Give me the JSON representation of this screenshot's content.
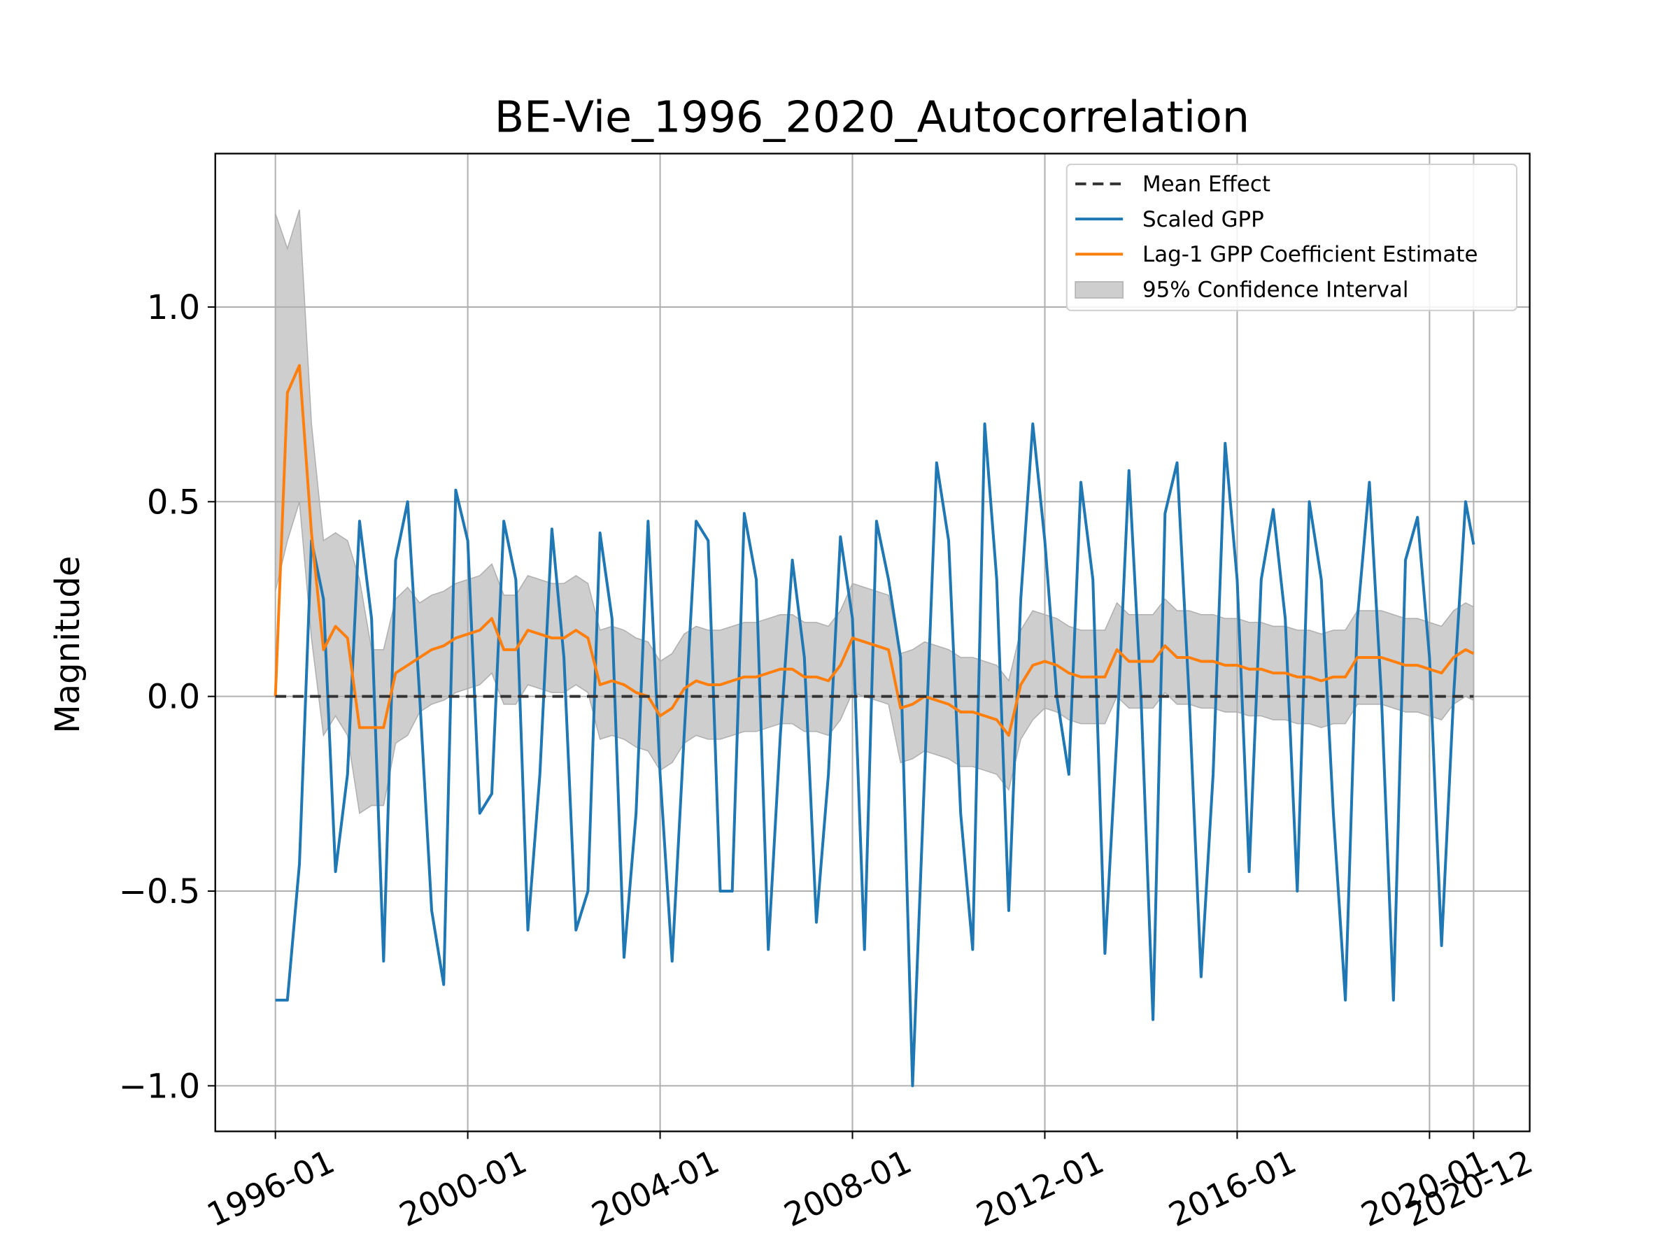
{
  "chart_data": {
    "type": "line",
    "title": "BE-Vie_1996_2020_Autocorrelation",
    "ylabel": "Magnitude",
    "x": [
      "1996-01",
      "1996-04",
      "1996-07",
      "1996-10",
      "1997-01",
      "1997-04",
      "1997-07",
      "1997-10",
      "1998-01",
      "1998-04",
      "1998-07",
      "1998-10",
      "1999-01",
      "1999-04",
      "1999-07",
      "1999-10",
      "2000-01",
      "2000-04",
      "2000-07",
      "2000-10",
      "2001-01",
      "2001-04",
      "2001-07",
      "2001-10",
      "2002-01",
      "2002-04",
      "2002-07",
      "2002-10",
      "2003-01",
      "2003-04",
      "2003-07",
      "2003-10",
      "2004-01",
      "2004-04",
      "2004-07",
      "2004-10",
      "2005-01",
      "2005-04",
      "2005-07",
      "2005-10",
      "2006-01",
      "2006-04",
      "2006-07",
      "2006-10",
      "2007-01",
      "2007-04",
      "2007-07",
      "2007-10",
      "2008-01",
      "2008-04",
      "2008-07",
      "2008-10",
      "2009-01",
      "2009-04",
      "2009-07",
      "2009-10",
      "2010-01",
      "2010-04",
      "2010-07",
      "2010-10",
      "2011-01",
      "2011-04",
      "2011-07",
      "2011-10",
      "2012-01",
      "2012-04",
      "2012-07",
      "2012-10",
      "2013-01",
      "2013-04",
      "2013-07",
      "2013-10",
      "2014-01",
      "2014-04",
      "2014-07",
      "2014-10",
      "2015-01",
      "2015-04",
      "2015-07",
      "2015-10",
      "2016-01",
      "2016-04",
      "2016-07",
      "2016-10",
      "2017-01",
      "2017-04",
      "2017-07",
      "2017-10",
      "2018-01",
      "2018-04",
      "2018-07",
      "2018-10",
      "2019-01",
      "2019-04",
      "2019-07",
      "2019-10",
      "2020-01",
      "2020-04",
      "2020-07",
      "2020-10",
      "2020-12"
    ],
    "series": [
      {
        "name": "Mean Effect",
        "color": "#333333",
        "dashed": true,
        "x": [
          "1996-01",
          "2020-12"
        ],
        "values": [
          0,
          0
        ]
      },
      {
        "name": "Scaled GPP",
        "color": "#1f77b4",
        "values": [
          -0.78,
          -0.78,
          -0.43,
          0.4,
          0.25,
          -0.45,
          -0.2,
          0.45,
          0.2,
          -0.68,
          0.35,
          0.5,
          0.0,
          -0.55,
          -0.74,
          0.53,
          0.4,
          -0.3,
          -0.25,
          0.45,
          0.3,
          -0.6,
          -0.2,
          0.43,
          0.1,
          -0.6,
          -0.5,
          0.42,
          0.2,
          -0.67,
          -0.3,
          0.45,
          -0.2,
          -0.68,
          -0.1,
          0.45,
          0.4,
          -0.5,
          -0.5,
          0.47,
          0.3,
          -0.65,
          -0.1,
          0.35,
          0.1,
          -0.58,
          -0.2,
          0.41,
          0.2,
          -0.65,
          0.45,
          0.3,
          0.1,
          -1.0,
          -0.2,
          0.6,
          0.4,
          -0.3,
          -0.65,
          0.7,
          0.3,
          -0.55,
          0.25,
          0.7,
          0.4,
          0.0,
          -0.2,
          0.55,
          0.3,
          -0.66,
          -0.1,
          0.58,
          0.0,
          -0.83,
          0.47,
          0.6,
          0.0,
          -0.72,
          -0.2,
          0.65,
          0.3,
          -0.45,
          0.3,
          0.48,
          0.2,
          -0.5,
          0.5,
          0.3,
          -0.3,
          -0.78,
          0.2,
          0.55,
          0.0,
          -0.78,
          0.35,
          0.46,
          0.1,
          -0.64,
          0.0,
          0.5,
          0.39
        ]
      },
      {
        "name": "Lag-1 GPP Coefficient Estimate",
        "color": "#ff7f0e",
        "values": [
          0.0,
          0.78,
          0.85,
          0.42,
          0.12,
          0.18,
          0.15,
          -0.08,
          -0.08,
          -0.08,
          0.06,
          0.08,
          0.1,
          0.12,
          0.13,
          0.15,
          0.16,
          0.17,
          0.2,
          0.12,
          0.12,
          0.17,
          0.16,
          0.15,
          0.15,
          0.17,
          0.15,
          0.03,
          0.04,
          0.03,
          0.01,
          0.0,
          -0.05,
          -0.03,
          0.02,
          0.04,
          0.03,
          0.03,
          0.04,
          0.05,
          0.05,
          0.06,
          0.07,
          0.07,
          0.05,
          0.05,
          0.04,
          0.08,
          0.15,
          0.14,
          0.13,
          0.12,
          -0.03,
          -0.02,
          0.0,
          -0.01,
          -0.02,
          -0.04,
          -0.04,
          -0.05,
          -0.06,
          -0.1,
          0.03,
          0.08,
          0.09,
          0.08,
          0.06,
          0.05,
          0.05,
          0.05,
          0.12,
          0.09,
          0.09,
          0.09,
          0.13,
          0.1,
          0.1,
          0.09,
          0.09,
          0.08,
          0.08,
          0.07,
          0.07,
          0.06,
          0.06,
          0.05,
          0.05,
          0.04,
          0.05,
          0.05,
          0.1,
          0.1,
          0.1,
          0.09,
          0.08,
          0.08,
          0.07,
          0.06,
          0.1,
          0.12,
          0.11
        ]
      }
    ],
    "band": {
      "name": "95% Confidence Interval",
      "color": "#b0b0b0",
      "lower": [
        0.27,
        0.4,
        0.5,
        0.15,
        -0.1,
        -0.05,
        -0.1,
        -0.3,
        -0.28,
        -0.28,
        -0.12,
        -0.1,
        -0.04,
        -0.02,
        -0.01,
        0.01,
        0.02,
        0.03,
        0.06,
        -0.02,
        -0.02,
        0.03,
        0.02,
        0.01,
        0.01,
        0.03,
        0.01,
        -0.11,
        -0.1,
        -0.11,
        -0.13,
        -0.14,
        -0.19,
        -0.17,
        -0.12,
        -0.1,
        -0.11,
        -0.11,
        -0.1,
        -0.09,
        -0.09,
        -0.08,
        -0.07,
        -0.07,
        -0.09,
        -0.09,
        -0.1,
        -0.06,
        0.01,
        0.0,
        -0.01,
        -0.02,
        -0.17,
        -0.16,
        -0.14,
        -0.15,
        -0.16,
        -0.18,
        -0.18,
        -0.19,
        -0.2,
        -0.24,
        -0.11,
        -0.06,
        -0.03,
        -0.04,
        -0.06,
        -0.07,
        -0.07,
        -0.07,
        0.0,
        -0.03,
        -0.03,
        -0.03,
        0.01,
        -0.02,
        -0.02,
        -0.03,
        -0.03,
        -0.04,
        -0.04,
        -0.05,
        -0.05,
        -0.06,
        -0.06,
        -0.07,
        -0.07,
        -0.08,
        -0.07,
        -0.07,
        -0.02,
        -0.02,
        -0.02,
        -0.03,
        -0.04,
        -0.04,
        -0.05,
        -0.06,
        -0.02,
        0.0,
        -0.01
      ],
      "upper": [
        1.24,
        1.15,
        1.25,
        0.7,
        0.4,
        0.42,
        0.4,
        0.3,
        0.12,
        0.12,
        0.25,
        0.28,
        0.24,
        0.26,
        0.27,
        0.29,
        0.3,
        0.31,
        0.34,
        0.26,
        0.26,
        0.31,
        0.3,
        0.29,
        0.29,
        0.31,
        0.29,
        0.17,
        0.18,
        0.17,
        0.15,
        0.14,
        0.09,
        0.11,
        0.16,
        0.18,
        0.17,
        0.17,
        0.18,
        0.19,
        0.19,
        0.2,
        0.21,
        0.21,
        0.19,
        0.19,
        0.18,
        0.22,
        0.29,
        0.28,
        0.27,
        0.26,
        0.11,
        0.12,
        0.14,
        0.13,
        0.12,
        0.1,
        0.1,
        0.09,
        0.08,
        0.04,
        0.17,
        0.22,
        0.21,
        0.2,
        0.18,
        0.17,
        0.17,
        0.17,
        0.24,
        0.21,
        0.21,
        0.21,
        0.25,
        0.22,
        0.22,
        0.21,
        0.21,
        0.2,
        0.2,
        0.19,
        0.19,
        0.18,
        0.18,
        0.17,
        0.17,
        0.16,
        0.17,
        0.17,
        0.22,
        0.22,
        0.22,
        0.21,
        0.2,
        0.2,
        0.19,
        0.18,
        0.22,
        0.24,
        0.23
      ]
    },
    "xlim": [
      "1994-10",
      "2022-02"
    ],
    "xticks": [
      "1996-01",
      "2000-01",
      "2004-01",
      "2008-01",
      "2012-01",
      "2016-01",
      "2020-01",
      "2020-12"
    ],
    "ylim": [
      -1.117,
      1.394
    ],
    "yticks": [
      {
        "value": -1.0,
        "label": "−1.0"
      },
      {
        "value": -0.5,
        "label": "−0.5"
      },
      {
        "value": 0.0,
        "label": "0.0"
      },
      {
        "value": 0.5,
        "label": "0.5"
      },
      {
        "value": 1.0,
        "label": "1.0"
      }
    ],
    "grid": true,
    "legend": "upper right"
  }
}
